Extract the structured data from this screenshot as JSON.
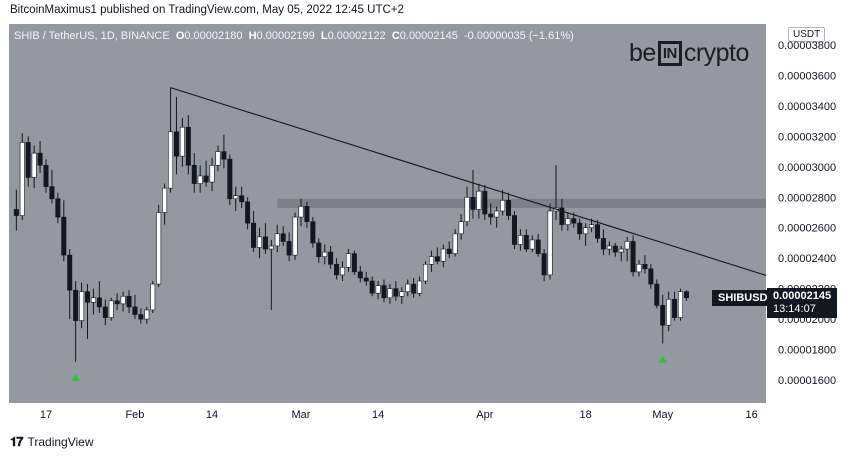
{
  "publisher_line": "BitcoinMaximus1 published on TradingView.com, May 05, 2022 12:45 UTC+2",
  "header": {
    "symbol": "SHIB / TetherUS, 1D, BINANCE",
    "o_label": "O",
    "o_value": "0.00002180",
    "h_label": "H",
    "h_value": "0.00002199",
    "l_label": "L",
    "l_value": "0.00002122",
    "c_label": "C",
    "c_value": "0.00002145",
    "change": "-0.00000035 (−1.61%)"
  },
  "logo": {
    "pre": "be",
    "mid": "IN",
    "post": "crypto"
  },
  "currency_badge": "USDT",
  "last_price_label": {
    "symbol": "SHIBUSDT",
    "price": "0.00002145",
    "countdown": "13:14:07"
  },
  "footer": {
    "icon": "tradingview-logo-icon",
    "text": "TradingView"
  },
  "colors": {
    "background": "#9598a1",
    "candle_up": "#ffffff",
    "candle_down": "#131722",
    "arrow": "#26c43d",
    "resistance_zone": "#767882"
  },
  "chart_data": {
    "type": "candlestick",
    "title": "SHIB / TetherUS, 1D, BINANCE",
    "y_axis": {
      "ticks": [
        "0.00003800",
        "0.00003600",
        "0.00003400",
        "0.00003200",
        "0.00003000",
        "0.00002800",
        "0.00002600",
        "0.00002400",
        "0.00002200",
        "0.00002000",
        "0.00001800",
        "0.00001600"
      ],
      "ylim": [
        1.45e-05,
        3.9e-05
      ]
    },
    "x_axis": {
      "ticks": [
        "17",
        "Feb",
        "14",
        "Mar",
        "14",
        "Apr",
        "18",
        "May",
        "16"
      ]
    },
    "candles": [
      {
        "date": "2022-01-12",
        "o": 2.72e-05,
        "h": 2.85e-05,
        "l": 2.58e-05,
        "c": 2.68e-05
      },
      {
        "date": "2022-01-13",
        "o": 2.68e-05,
        "h": 3.22e-05,
        "l": 2.65e-05,
        "c": 3.16e-05
      },
      {
        "date": "2022-01-14",
        "o": 3.16e-05,
        "h": 3.2e-05,
        "l": 2.87e-05,
        "c": 2.93e-05
      },
      {
        "date": "2022-01-15",
        "o": 2.93e-05,
        "h": 3.14e-05,
        "l": 2.86e-05,
        "c": 3.09e-05
      },
      {
        "date": "2022-01-16",
        "o": 3.09e-05,
        "h": 3.17e-05,
        "l": 2.96e-05,
        "c": 3.01e-05
      },
      {
        "date": "2022-01-17",
        "o": 3.01e-05,
        "h": 3.05e-05,
        "l": 2.83e-05,
        "c": 2.87e-05
      },
      {
        "date": "2022-01-18",
        "o": 2.87e-05,
        "h": 2.98e-05,
        "l": 2.76e-05,
        "c": 2.79e-05
      },
      {
        "date": "2022-01-19",
        "o": 2.79e-05,
        "h": 2.83e-05,
        "l": 2.63e-05,
        "c": 2.67e-05
      },
      {
        "date": "2022-01-20",
        "o": 2.67e-05,
        "h": 2.78e-05,
        "l": 2.38e-05,
        "c": 2.42e-05
      },
      {
        "date": "2022-01-21",
        "o": 2.42e-05,
        "h": 2.46e-05,
        "l": 2e-05,
        "c": 2.19e-05
      },
      {
        "date": "2022-01-22",
        "o": 2.19e-05,
        "h": 2.25e-05,
        "l": 1.72e-05,
        "c": 1.99e-05
      },
      {
        "date": "2022-01-23",
        "o": 1.99e-05,
        "h": 2.24e-05,
        "l": 1.94e-05,
        "c": 2.18e-05
      },
      {
        "date": "2022-01-24",
        "o": 2.18e-05,
        "h": 2.23e-05,
        "l": 1.87e-05,
        "c": 2.11e-05
      },
      {
        "date": "2022-01-25",
        "o": 2.11e-05,
        "h": 2.2e-05,
        "l": 2.03e-05,
        "c": 2.14e-05
      },
      {
        "date": "2022-01-26",
        "o": 2.14e-05,
        "h": 2.25e-05,
        "l": 2.04e-05,
        "c": 2.08e-05
      },
      {
        "date": "2022-01-27",
        "o": 2.08e-05,
        "h": 2.13e-05,
        "l": 1.96e-05,
        "c": 2.01e-05
      },
      {
        "date": "2022-01-28",
        "o": 2.01e-05,
        "h": 2.14e-05,
        "l": 1.99e-05,
        "c": 2.12e-05
      },
      {
        "date": "2022-01-29",
        "o": 2.12e-05,
        "h": 2.17e-05,
        "l": 2.06e-05,
        "c": 2.1e-05
      },
      {
        "date": "2022-01-30",
        "o": 2.1e-05,
        "h": 2.18e-05,
        "l": 2.05e-05,
        "c": 2.15e-05
      },
      {
        "date": "2022-01-31",
        "o": 2.15e-05,
        "h": 2.19e-05,
        "l": 2.04e-05,
        "c": 2.08e-05
      },
      {
        "date": "2022-02-01",
        "o": 2.08e-05,
        "h": 2.16e-05,
        "l": 2e-05,
        "c": 2.03e-05
      },
      {
        "date": "2022-02-02",
        "o": 2.03e-05,
        "h": 2.07e-05,
        "l": 1.97e-05,
        "c": 2e-05
      },
      {
        "date": "2022-02-03",
        "o": 2e-05,
        "h": 2.08e-05,
        "l": 1.97e-05,
        "c": 2.06e-05
      },
      {
        "date": "2022-02-04",
        "o": 2.06e-05,
        "h": 2.25e-05,
        "l": 2.04e-05,
        "c": 2.23e-05
      },
      {
        "date": "2022-02-05",
        "o": 2.23e-05,
        "h": 2.75e-05,
        "l": 2.21e-05,
        "c": 2.7e-05
      },
      {
        "date": "2022-02-06",
        "o": 2.7e-05,
        "h": 2.89e-05,
        "l": 2.62e-05,
        "c": 2.86e-05
      },
      {
        "date": "2022-02-07",
        "o": 2.86e-05,
        "h": 3.52e-05,
        "l": 2.83e-05,
        "c": 3.23e-05
      },
      {
        "date": "2022-02-08",
        "o": 3.23e-05,
        "h": 3.46e-05,
        "l": 2.95e-05,
        "c": 3.07e-05
      },
      {
        "date": "2022-02-09",
        "o": 3.07e-05,
        "h": 3.32e-05,
        "l": 3e-05,
        "c": 3.26e-05
      },
      {
        "date": "2022-02-10",
        "o": 3.26e-05,
        "h": 3.34e-05,
        "l": 2.95e-05,
        "c": 3.01e-05
      },
      {
        "date": "2022-02-11",
        "o": 3.01e-05,
        "h": 3.09e-05,
        "l": 2.83e-05,
        "c": 2.89e-05
      },
      {
        "date": "2022-02-12",
        "o": 2.89e-05,
        "h": 3.01e-05,
        "l": 2.83e-05,
        "c": 2.94e-05
      },
      {
        "date": "2022-02-13",
        "o": 2.94e-05,
        "h": 3.04e-05,
        "l": 2.87e-05,
        "c": 2.9e-05
      },
      {
        "date": "2022-02-14",
        "o": 2.9e-05,
        "h": 3.06e-05,
        "l": 2.84e-05,
        "c": 3.01e-05
      },
      {
        "date": "2022-02-15",
        "o": 3.01e-05,
        "h": 3.14e-05,
        "l": 2.97e-05,
        "c": 3.1e-05
      },
      {
        "date": "2022-02-16",
        "o": 3.1e-05,
        "h": 3.21e-05,
        "l": 2.99e-05,
        "c": 3.05e-05
      },
      {
        "date": "2022-02-17",
        "o": 3.05e-05,
        "h": 3.08e-05,
        "l": 2.75e-05,
        "c": 2.79e-05
      },
      {
        "date": "2022-02-18",
        "o": 2.79e-05,
        "h": 2.87e-05,
        "l": 2.71e-05,
        "c": 2.81e-05
      },
      {
        "date": "2022-02-19",
        "o": 2.81e-05,
        "h": 2.87e-05,
        "l": 2.73e-05,
        "c": 2.77e-05
      },
      {
        "date": "2022-02-20",
        "o": 2.77e-05,
        "h": 2.8e-05,
        "l": 2.59e-05,
        "c": 2.63e-05
      },
      {
        "date": "2022-02-21",
        "o": 2.63e-05,
        "h": 2.71e-05,
        "l": 2.44e-05,
        "c": 2.47e-05
      },
      {
        "date": "2022-02-22",
        "o": 2.47e-05,
        "h": 2.6e-05,
        "l": 2.4e-05,
        "c": 2.54e-05
      },
      {
        "date": "2022-02-23",
        "o": 2.54e-05,
        "h": 2.63e-05,
        "l": 2.43e-05,
        "c": 2.46e-05
      },
      {
        "date": "2022-02-24",
        "o": 2.46e-05,
        "h": 2.52e-05,
        "l": 2.06e-05,
        "c": 2.48e-05
      },
      {
        "date": "2022-02-25",
        "o": 2.48e-05,
        "h": 2.62e-05,
        "l": 2.44e-05,
        "c": 2.56e-05
      },
      {
        "date": "2022-02-26",
        "o": 2.56e-05,
        "h": 2.61e-05,
        "l": 2.48e-05,
        "c": 2.51e-05
      },
      {
        "date": "2022-02-27",
        "o": 2.51e-05,
        "h": 2.57e-05,
        "l": 2.38e-05,
        "c": 2.42e-05
      },
      {
        "date": "2022-02-28",
        "o": 2.42e-05,
        "h": 2.7e-05,
        "l": 2.39e-05,
        "c": 2.67e-05
      },
      {
        "date": "2022-03-01",
        "o": 2.67e-05,
        "h": 2.79e-05,
        "l": 2.61e-05,
        "c": 2.74e-05
      },
      {
        "date": "2022-03-02",
        "o": 2.74e-05,
        "h": 2.77e-05,
        "l": 2.6e-05,
        "c": 2.64e-05
      },
      {
        "date": "2022-03-03",
        "o": 2.64e-05,
        "h": 2.67e-05,
        "l": 2.47e-05,
        "c": 2.5e-05
      },
      {
        "date": "2022-03-04",
        "o": 2.5e-05,
        "h": 2.53e-05,
        "l": 2.37e-05,
        "c": 2.41e-05
      },
      {
        "date": "2022-03-05",
        "o": 2.41e-05,
        "h": 2.49e-05,
        "l": 2.36e-05,
        "c": 2.44e-05
      },
      {
        "date": "2022-03-06",
        "o": 2.44e-05,
        "h": 2.48e-05,
        "l": 2.33e-05,
        "c": 2.36e-05
      },
      {
        "date": "2022-03-07",
        "o": 2.36e-05,
        "h": 2.4e-05,
        "l": 2.26e-05,
        "c": 2.29e-05
      },
      {
        "date": "2022-03-08",
        "o": 2.29e-05,
        "h": 2.38e-05,
        "l": 2.25e-05,
        "c": 2.34e-05
      },
      {
        "date": "2022-03-09",
        "o": 2.34e-05,
        "h": 2.46e-05,
        "l": 2.31e-05,
        "c": 2.43e-05
      },
      {
        "date": "2022-03-10",
        "o": 2.43e-05,
        "h": 2.45e-05,
        "l": 2.29e-05,
        "c": 2.31e-05
      },
      {
        "date": "2022-03-11",
        "o": 2.31e-05,
        "h": 2.35e-05,
        "l": 2.24e-05,
        "c": 2.27e-05
      },
      {
        "date": "2022-03-12",
        "o": 2.27e-05,
        "h": 2.31e-05,
        "l": 2.22e-05,
        "c": 2.25e-05
      },
      {
        "date": "2022-03-13",
        "o": 2.25e-05,
        "h": 2.28e-05,
        "l": 2.15e-05,
        "c": 2.17e-05
      },
      {
        "date": "2022-03-14",
        "o": 2.17e-05,
        "h": 2.25e-05,
        "l": 2.13e-05,
        "c": 2.22e-05
      },
      {
        "date": "2022-03-15",
        "o": 2.22e-05,
        "h": 2.26e-05,
        "l": 2.11e-05,
        "c": 2.14e-05
      },
      {
        "date": "2022-03-16",
        "o": 2.14e-05,
        "h": 2.23e-05,
        "l": 2.1e-05,
        "c": 2.2e-05
      },
      {
        "date": "2022-03-17",
        "o": 2.2e-05,
        "h": 2.25e-05,
        "l": 2.12e-05,
        "c": 2.15e-05
      },
      {
        "date": "2022-03-18",
        "o": 2.15e-05,
        "h": 2.21e-05,
        "l": 2.1e-05,
        "c": 2.18e-05
      },
      {
        "date": "2022-03-19",
        "o": 2.18e-05,
        "h": 2.26e-05,
        "l": 2.15e-05,
        "c": 2.23e-05
      },
      {
        "date": "2022-03-20",
        "o": 2.23e-05,
        "h": 2.27e-05,
        "l": 2.14e-05,
        "c": 2.17e-05
      },
      {
        "date": "2022-03-21",
        "o": 2.17e-05,
        "h": 2.28e-05,
        "l": 2.15e-05,
        "c": 2.25e-05
      },
      {
        "date": "2022-03-22",
        "o": 2.25e-05,
        "h": 2.38e-05,
        "l": 2.23e-05,
        "c": 2.36e-05
      },
      {
        "date": "2022-03-23",
        "o": 2.36e-05,
        "h": 2.45e-05,
        "l": 2.31e-05,
        "c": 2.41e-05
      },
      {
        "date": "2022-03-24",
        "o": 2.41e-05,
        "h": 2.47e-05,
        "l": 2.36e-05,
        "c": 2.38e-05
      },
      {
        "date": "2022-03-25",
        "o": 2.38e-05,
        "h": 2.49e-05,
        "l": 2.34e-05,
        "c": 2.46e-05
      },
      {
        "date": "2022-03-26",
        "o": 2.46e-05,
        "h": 2.51e-05,
        "l": 2.4e-05,
        "c": 2.43e-05
      },
      {
        "date": "2022-03-27",
        "o": 2.43e-05,
        "h": 2.59e-05,
        "l": 2.41e-05,
        "c": 2.56e-05
      },
      {
        "date": "2022-03-28",
        "o": 2.56e-05,
        "h": 2.69e-05,
        "l": 2.52e-05,
        "c": 2.64e-05
      },
      {
        "date": "2022-03-29",
        "o": 2.64e-05,
        "h": 2.87e-05,
        "l": 2.61e-05,
        "c": 2.8e-05
      },
      {
        "date": "2022-03-30",
        "o": 2.8e-05,
        "h": 2.98e-05,
        "l": 2.66e-05,
        "c": 2.72e-05
      },
      {
        "date": "2022-03-31",
        "o": 2.72e-05,
        "h": 2.89e-05,
        "l": 2.66e-05,
        "c": 2.84e-05
      },
      {
        "date": "2022-04-01",
        "o": 2.84e-05,
        "h": 2.88e-05,
        "l": 2.65e-05,
        "c": 2.69e-05
      },
      {
        "date": "2022-04-02",
        "o": 2.69e-05,
        "h": 2.76e-05,
        "l": 2.62e-05,
        "c": 2.67e-05
      },
      {
        "date": "2022-04-03",
        "o": 2.67e-05,
        "h": 2.74e-05,
        "l": 2.6e-05,
        "c": 2.71e-05
      },
      {
        "date": "2022-04-04",
        "o": 2.71e-05,
        "h": 2.85e-05,
        "l": 2.68e-05,
        "c": 2.78e-05
      },
      {
        "date": "2022-04-05",
        "o": 2.78e-05,
        "h": 2.83e-05,
        "l": 2.65e-05,
        "c": 2.68e-05
      },
      {
        "date": "2022-04-06",
        "o": 2.68e-05,
        "h": 2.71e-05,
        "l": 2.46e-05,
        "c": 2.49e-05
      },
      {
        "date": "2022-04-07",
        "o": 2.49e-05,
        "h": 2.59e-05,
        "l": 2.45e-05,
        "c": 2.55e-05
      },
      {
        "date": "2022-04-08",
        "o": 2.55e-05,
        "h": 2.59e-05,
        "l": 2.44e-05,
        "c": 2.46e-05
      },
      {
        "date": "2022-04-09",
        "o": 2.46e-05,
        "h": 2.55e-05,
        "l": 2.44e-05,
        "c": 2.52e-05
      },
      {
        "date": "2022-04-10",
        "o": 2.52e-05,
        "h": 2.56e-05,
        "l": 2.41e-05,
        "c": 2.43e-05
      },
      {
        "date": "2022-04-11",
        "o": 2.43e-05,
        "h": 2.46e-05,
        "l": 2.25e-05,
        "c": 2.29e-05
      },
      {
        "date": "2022-04-12",
        "o": 2.29e-05,
        "h": 2.76e-05,
        "l": 2.26e-05,
        "c": 2.71e-05
      },
      {
        "date": "2022-04-13",
        "o": 2.71e-05,
        "h": 3.01e-05,
        "l": 2.65e-05,
        "c": 2.73e-05
      },
      {
        "date": "2022-04-14",
        "o": 2.73e-05,
        "h": 2.79e-05,
        "l": 2.58e-05,
        "c": 2.62e-05
      },
      {
        "date": "2022-04-15",
        "o": 2.62e-05,
        "h": 2.7e-05,
        "l": 2.58e-05,
        "c": 2.66e-05
      },
      {
        "date": "2022-04-16",
        "o": 2.66e-05,
        "h": 2.7e-05,
        "l": 2.6e-05,
        "c": 2.63e-05
      },
      {
        "date": "2022-04-17",
        "o": 2.63e-05,
        "h": 2.66e-05,
        "l": 2.52e-05,
        "c": 2.56e-05
      },
      {
        "date": "2022-04-18",
        "o": 2.56e-05,
        "h": 2.63e-05,
        "l": 2.48e-05,
        "c": 2.6e-05
      },
      {
        "date": "2022-04-19",
        "o": 2.6e-05,
        "h": 2.66e-05,
        "l": 2.57e-05,
        "c": 2.62e-05
      },
      {
        "date": "2022-04-20",
        "o": 2.62e-05,
        "h": 2.65e-05,
        "l": 2.5e-05,
        "c": 2.53e-05
      },
      {
        "date": "2022-04-21",
        "o": 2.53e-05,
        "h": 2.59e-05,
        "l": 2.42e-05,
        "c": 2.46e-05
      },
      {
        "date": "2022-04-22",
        "o": 2.46e-05,
        "h": 2.51e-05,
        "l": 2.42e-05,
        "c": 2.48e-05
      },
      {
        "date": "2022-04-23",
        "o": 2.48e-05,
        "h": 2.5e-05,
        "l": 2.41e-05,
        "c": 2.44e-05
      },
      {
        "date": "2022-04-24",
        "o": 2.44e-05,
        "h": 2.48e-05,
        "l": 2.38e-05,
        "c": 2.46e-05
      },
      {
        "date": "2022-04-25",
        "o": 2.46e-05,
        "h": 2.54e-05,
        "l": 2.38e-05,
        "c": 2.51e-05
      },
      {
        "date": "2022-04-26",
        "o": 2.51e-05,
        "h": 2.55e-05,
        "l": 2.28e-05,
        "c": 2.31e-05
      },
      {
        "date": "2022-04-27",
        "o": 2.31e-05,
        "h": 2.39e-05,
        "l": 2.28e-05,
        "c": 2.36e-05
      },
      {
        "date": "2022-04-28",
        "o": 2.36e-05,
        "h": 2.42e-05,
        "l": 2.3e-05,
        "c": 2.33e-05
      },
      {
        "date": "2022-04-29",
        "o": 2.33e-05,
        "h": 2.36e-05,
        "l": 2.2e-05,
        "c": 2.23e-05
      },
      {
        "date": "2022-04-30",
        "o": 2.23e-05,
        "h": 2.26e-05,
        "l": 2.07e-05,
        "c": 2.09e-05
      },
      {
        "date": "2022-05-01",
        "o": 2.09e-05,
        "h": 2.16e-05,
        "l": 1.84e-05,
        "c": 1.96e-05
      },
      {
        "date": "2022-05-02",
        "o": 1.96e-05,
        "h": 2.18e-05,
        "l": 1.92e-05,
        "c": 2.13e-05
      },
      {
        "date": "2022-05-03",
        "o": 2.13e-05,
        "h": 2.18e-05,
        "l": 1.99e-05,
        "c": 2.01e-05
      },
      {
        "date": "2022-05-04",
        "o": 2.01e-05,
        "h": 2.2e-05,
        "l": 1.99e-05,
        "c": 2.18e-05
      },
      {
        "date": "2022-05-05",
        "o": 2.18e-05,
        "h": 2.19e-05,
        "l": 2.12e-05,
        "c": 2.14e-05
      }
    ],
    "annotations": {
      "descending_resistance": {
        "start": {
          "date": "2022-02-07",
          "price": 3.52e-05
        },
        "end": {
          "date": "2022-05-19",
          "price": 2.28e-05
        }
      },
      "horizontal_zone": {
        "start_date": "2022-02-25",
        "end_date": "2022-05-31",
        "low": 2.73e-05,
        "high": 2.79e-05
      },
      "up_arrows": [
        {
          "date": "2022-01-22",
          "price": 1.62e-05
        },
        {
          "date": "2022-05-01",
          "price": 1.74e-05
        }
      ]
    },
    "grid": false,
    "legend": "none"
  }
}
